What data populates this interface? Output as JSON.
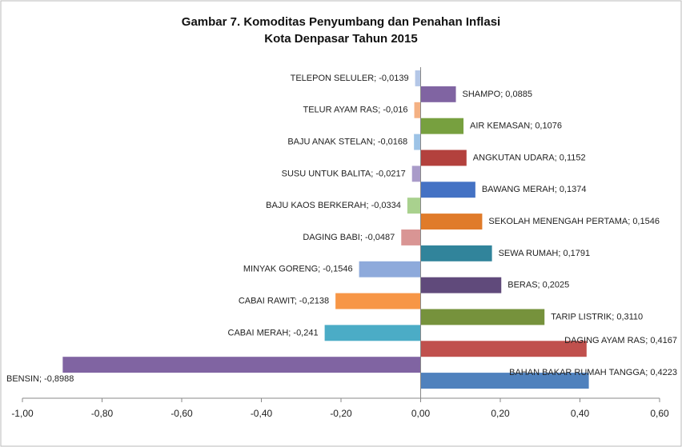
{
  "chart_data": {
    "type": "hbar",
    "title": [
      "Gambar 7. Komoditas Penyumbang dan Penahan Inflasi",
      "Kota Denpasar Tahun 2015"
    ],
    "values": [
      -0.0139,
      0.0885,
      -0.016,
      0.1076,
      -0.0168,
      0.1152,
      -0.0217,
      0.1374,
      -0.0334,
      0.1546,
      -0.0487,
      0.1791,
      -0.1546,
      0.2025,
      -0.2138,
      0.311,
      -0.241,
      0.4167,
      -0.8988,
      0.4223
    ],
    "value_labels": [
      "TELEPON SELULER; -0,0139",
      "SHAMPO; 0,0885",
      "TELUR AYAM RAS; -0,016",
      "AIR KEMASAN; 0,1076",
      "BAJU ANAK STELAN; -0,0168",
      "ANGKUTAN UDARA; 0,1152",
      "SUSU UNTUK BALITA; -0,0217",
      "BAWANG MERAH; 0,1374",
      "BAJU KAOS BERKERAH; -0,0334",
      "SEKOLAH MENENGAH PERTAMA; 0,1546",
      "DAGING BABI; -0,0487",
      "SEWA RUMAH; 0,1791",
      "MINYAK GORENG; -0,1546",
      "BERAS; 0,2025",
      "CABAI RAWIT; -0,2138",
      "TARIP LISTRIK; 0,3110",
      "CABAI MERAH; -0,241",
      "DAGING AYAM RAS; 0,4167",
      "BENSIN; -0,8988",
      "BAHAN BAKAR RUMAH TANGGA; 0,4223"
    ],
    "colors": [
      "#b4c7e7",
      "#8064a2",
      "#f4b183",
      "#77a03f",
      "#9dc3e6",
      "#b3413d",
      "#a99bc9",
      "#4472c4",
      "#a9d18e",
      "#e07b2a",
      "#d99594",
      "#31849b",
      "#8eaadb",
      "#604a7b",
      "#f79646",
      "#76923c",
      "#4bacc6",
      "#c0504d",
      "#8064a2",
      "#4f81bd"
    ],
    "xlim": [
      -1,
      0.6
    ],
    "xticks": [
      {
        "value": -1,
        "label": "-1,00"
      },
      {
        "value": -0.8,
        "label": "-0,80"
      },
      {
        "value": -0.6,
        "label": "-0,60"
      },
      {
        "value": -0.4,
        "label": "-0,40"
      },
      {
        "value": -0.2,
        "label": "-0,20"
      },
      {
        "value": 0,
        "label": "0,00"
      },
      {
        "value": 0.2,
        "label": "0,20"
      },
      {
        "value": 0.4,
        "label": "0,40"
      },
      {
        "value": 0.6,
        "label": "0,60"
      }
    ]
  }
}
